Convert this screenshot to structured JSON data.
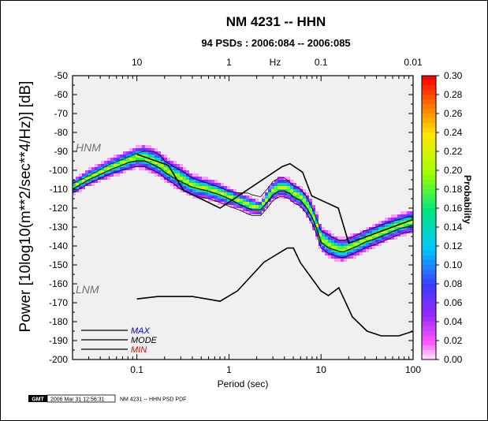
{
  "chart_data": {
    "type": "heatmap",
    "title": "NM 4231 -- HHN",
    "subtitle": "94 PSDs : 2006:084 -- 2006:085",
    "xlabel": "Period (sec)",
    "ylabel": "Power [10log10(m**2/sec**4/Hz)] [dB]",
    "top_axis_label": "Hz",
    "x_scale": "log",
    "xlim": [
      0.02,
      100
    ],
    "ylim": [
      -200,
      -50
    ],
    "x_ticks": [
      {
        "value": 0.1,
        "label": "0.1"
      },
      {
        "value": 1,
        "label": "1"
      },
      {
        "value": 10,
        "label": "10"
      },
      {
        "value": 100,
        "label": "100"
      }
    ],
    "top_ticks": [
      {
        "period": 0.1,
        "label": "10"
      },
      {
        "period": 1,
        "label": "1"
      },
      {
        "period": 10,
        "label": "0.1"
      },
      {
        "period": 100,
        "label": "0.01"
      }
    ],
    "y_ticks": [
      -50,
      -60,
      -70,
      -80,
      -90,
      -100,
      -110,
      -120,
      -130,
      -140,
      -150,
      -160,
      -170,
      -180,
      -190,
      -200
    ],
    "colorbar": {
      "label": "Probability",
      "range": [
        0,
        0.3
      ],
      "ticks": [
        "0.30",
        "0.28",
        "0.26",
        "0.24",
        "0.22",
        "0.20",
        "0.18",
        "0.16",
        "0.14",
        "0.12",
        "0.10",
        "0.08",
        "0.06",
        "0.04",
        "0.02",
        "0.00"
      ]
    },
    "noise_models": [
      {
        "name": "HNM",
        "x": [
          0.1,
          0.22,
          0.32,
          0.8,
          3.8,
          4.6,
          6.3,
          7.9,
          15.4,
          20,
          100
        ],
        "y": [
          -91.5,
          -97.4,
          -110.5,
          -120,
          -98,
          -96.5,
          -101,
          -113.5,
          -120,
          -138.5,
          -126
        ]
      },
      {
        "name": "LNM",
        "x": [
          0.1,
          0.17,
          0.4,
          0.8,
          1.24,
          2.4,
          4.3,
          5,
          6,
          10,
          12,
          15.6,
          21.9,
          31.6,
          45,
          70,
          101
        ],
        "y": [
          -168,
          -166.7,
          -166.7,
          -169.2,
          -163.7,
          -148.6,
          -141.1,
          -141.1,
          -149,
          -163.8,
          -166.2,
          -162.1,
          -177.5,
          -185,
          -187.5,
          -187.5,
          -185
        ]
      }
    ],
    "statistics_series": [
      {
        "name": "MAX",
        "x": [
          0.02,
          0.03,
          0.05,
          0.08,
          0.1,
          0.12,
          0.15,
          0.18,
          0.2,
          0.25,
          0.3,
          0.4,
          0.6,
          0.8,
          1,
          1.3,
          1.6,
          1.8,
          2.2,
          2.6,
          3,
          3.5,
          4,
          4.5,
          5,
          6,
          7,
          8,
          9,
          10,
          12,
          14,
          16,
          18,
          20,
          25,
          30,
          40,
          50,
          70,
          100
        ],
        "y": [
          -107,
          -103,
          -97,
          -93,
          -91,
          -90,
          -90,
          -92,
          -95,
          -98,
          -100,
          -104,
          -107,
          -109,
          -111,
          -112,
          -112,
          -113,
          -114,
          -110,
          -106,
          -104,
          -104,
          -106,
          -108,
          -110,
          -114,
          -120,
          -126,
          -132,
          -134,
          -136,
          -137,
          -137,
          -136,
          -134,
          -132,
          -130,
          -128,
          -126,
          -124
        ]
      },
      {
        "name": "MODE",
        "x": [
          0.02,
          0.03,
          0.05,
          0.08,
          0.1,
          0.12,
          0.15,
          0.18,
          0.2,
          0.25,
          0.3,
          0.4,
          0.6,
          0.8,
          1,
          1.3,
          1.6,
          1.8,
          2.2,
          2.6,
          3,
          3.5,
          4,
          4.5,
          5,
          6,
          7,
          8,
          9,
          10,
          12,
          14,
          16,
          18,
          20,
          25,
          30,
          40,
          50,
          70,
          100
        ],
        "y": [
          -110,
          -105,
          -100,
          -96,
          -95,
          -95,
          -97,
          -99,
          -101,
          -104,
          -106,
          -109,
          -111,
          -113,
          -115,
          -118,
          -120,
          -121,
          -121,
          -117,
          -113,
          -111,
          -111,
          -112,
          -114,
          -116,
          -120,
          -125,
          -131,
          -138,
          -141,
          -142,
          -143,
          -143,
          -142,
          -140,
          -138,
          -136,
          -134,
          -131,
          -129
        ]
      },
      {
        "name": "MIN",
        "x": [
          0.02,
          0.03,
          0.05,
          0.08,
          0.1,
          0.12,
          0.15,
          0.18,
          0.2,
          0.25,
          0.3,
          0.4,
          0.6,
          0.8,
          1,
          1.3,
          1.6,
          1.8,
          2.2,
          2.6,
          3,
          3.5,
          4,
          4.5,
          5,
          6,
          7,
          8,
          9,
          10,
          12,
          14,
          16,
          18,
          20,
          25,
          30,
          40,
          50,
          70,
          100
        ],
        "y": [
          -112,
          -107,
          -102,
          -99,
          -98,
          -98,
          -100,
          -102,
          -104,
          -107,
          -110,
          -113,
          -115,
          -117,
          -119,
          -121,
          -123,
          -124,
          -124,
          -120,
          -116,
          -114,
          -114,
          -115,
          -117,
          -119,
          -123,
          -128,
          -134,
          -141,
          -144,
          -145,
          -146,
          -146,
          -145,
          -143,
          -141,
          -139,
          -137,
          -134,
          -132
        ]
      }
    ],
    "pdf_band": {
      "x": [
        0.02,
        0.03,
        0.05,
        0.08,
        0.1,
        0.12,
        0.15,
        0.18,
        0.2,
        0.25,
        0.3,
        0.4,
        0.6,
        0.8,
        1,
        1.3,
        1.6,
        1.8,
        2.2,
        2.6,
        3,
        3.5,
        4,
        4.5,
        5,
        6,
        7,
        8,
        9,
        10,
        12,
        14,
        16,
        18,
        20,
        25,
        30,
        40,
        50,
        70,
        100
      ],
      "center": [
        -109,
        -104,
        -99,
        -95,
        -93,
        -93,
        -95,
        -97,
        -99,
        -102,
        -104,
        -108,
        -110,
        -112,
        -114,
        -116,
        -118,
        -119,
        -120,
        -115,
        -111,
        -109,
        -109,
        -110,
        -112,
        -114,
        -118,
        -123,
        -129,
        -136,
        -139,
        -141,
        -142,
        -142,
        -141,
        -139,
        -137,
        -134,
        -132,
        -129,
        -127
      ],
      "half_width": [
        3.5,
        4,
        4.5,
        5,
        5,
        6,
        6,
        6,
        6,
        6,
        6,
        5.5,
        5,
        5,
        4.5,
        4,
        4,
        4,
        3.5,
        4,
        4.5,
        5,
        5,
        5,
        5,
        5,
        5.5,
        6,
        6,
        6,
        6,
        6,
        5.5,
        5.5,
        5.5,
        5.5,
        5.5,
        5.5,
        5.5,
        5.5,
        5.5
      ]
    },
    "legend": {
      "placement": "bottom-left",
      "entries": [
        {
          "name": "MAX",
          "color": "#0000cc"
        },
        {
          "name": "MODE",
          "color": "#000000"
        },
        {
          "name": "MIN",
          "color": "#dd0000"
        }
      ]
    },
    "grid": false
  },
  "footer": {
    "logo": "GMT",
    "timestamp": "2006 Mar 31 12:56:31",
    "caption": "NM 4231 -- HHN PSD PDF"
  },
  "colors": {
    "plot_background": "#f0f0f0",
    "noise_model_line": "#000000",
    "mode_line": "#000000"
  }
}
